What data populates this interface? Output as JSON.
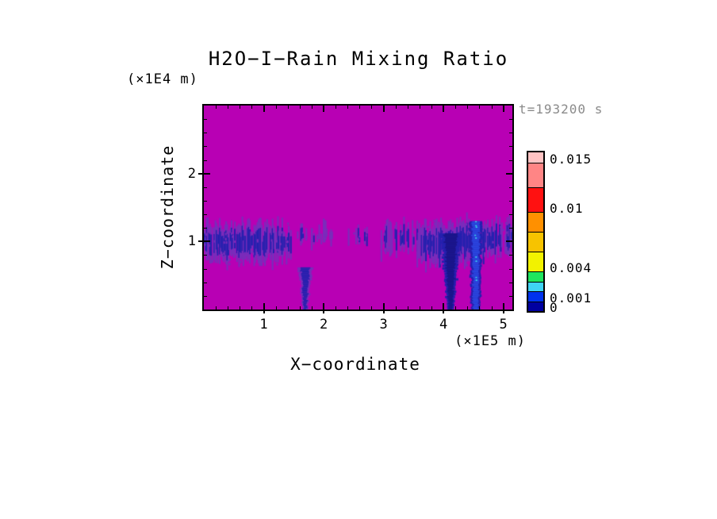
{
  "chart_data": {
    "type": "heatmap",
    "title": "H2O−I−Rain Mixing Ratio",
    "time_annotation": "t=193200 s",
    "xlabel": "X−coordinate",
    "ylabel": "Z−coordinate",
    "x_units": "(×1E5 m)",
    "z_units": "(×1E4 m)",
    "xlim": [
      0,
      5.15
    ],
    "zlim": [
      0,
      3
    ],
    "x_major_ticks": [
      1,
      2,
      3,
      4,
      5
    ],
    "z_major_ticks": [
      1,
      2
    ],
    "minor_tick_step": 0.2,
    "grid": false,
    "background_value_color": "#b800b4",
    "colorbar": {
      "position": "right",
      "value_max": 0.016,
      "levels": [
        0,
        0.001,
        0.002,
        0.003,
        0.004,
        0.006,
        0.008,
        0.01,
        0.0125,
        0.015,
        0.016
      ],
      "segment_colors": [
        "#0000a0",
        "#0033ee",
        "#3fd4f4",
        "#1ee55e",
        "#f2f200",
        "#f7c300",
        "#ff9000",
        "#ff1111",
        "#ff8585",
        "#ffc3c3"
      ],
      "labeled_levels": [
        0.015,
        0.01,
        0.004,
        0.001,
        0
      ],
      "labels": [
        "0.015",
        "0.01",
        "0.004",
        "0.001",
        "0"
      ]
    },
    "field": {
      "description": "rain mixing ratio: noisy blue band centered near z=1e4 m over magenta background, with three precipitation shafts reaching the surface",
      "palette": {
        "fringe": "#7a2cbb",
        "core": "#2420ae",
        "dark": "#1a1488",
        "shaft_blue": "#2b46df",
        "speck": "#3fd8ee"
      },
      "band_segments": [
        {
          "x0": 0.0,
          "x1": 1.45,
          "z": 0.98,
          "hw": 0.17,
          "density": 0.95,
          "spike": 0.1
        },
        {
          "x0": 1.5,
          "x1": 2.2,
          "z": 1.1,
          "hw": 0.09,
          "density": 0.42,
          "spike": 0.02
        },
        {
          "x0": 2.35,
          "x1": 2.75,
          "z": 1.08,
          "hw": 0.08,
          "density": 0.35,
          "spike": 0.02
        },
        {
          "x0": 2.95,
          "x1": 3.5,
          "z": 1.05,
          "hw": 0.13,
          "density": 0.7,
          "spike": 0.05
        },
        {
          "x0": 3.55,
          "x1": 4.45,
          "z": 1.0,
          "hw": 0.19,
          "density": 1.0,
          "spike": 0.12
        },
        {
          "x0": 4.62,
          "x1": 5.15,
          "z": 1.04,
          "hw": 0.15,
          "density": 0.85,
          "spike": 0.06
        }
      ],
      "shafts": [
        {
          "x": 1.69,
          "z_top": 0.62,
          "w_top": 0.14,
          "w_bot": 0.04,
          "fill": "core",
          "fringe": "fringe"
        },
        {
          "x": 4.12,
          "z_top": 1.12,
          "w_top": 0.2,
          "w_bot": 0.06,
          "fill": "dark",
          "fringe": "core"
        },
        {
          "x": 4.54,
          "z_top": 1.3,
          "w_top": 0.12,
          "w_bot": 0.09,
          "fill": "shaft_blue",
          "fringe": "core",
          "specks": "speck"
        }
      ]
    }
  }
}
